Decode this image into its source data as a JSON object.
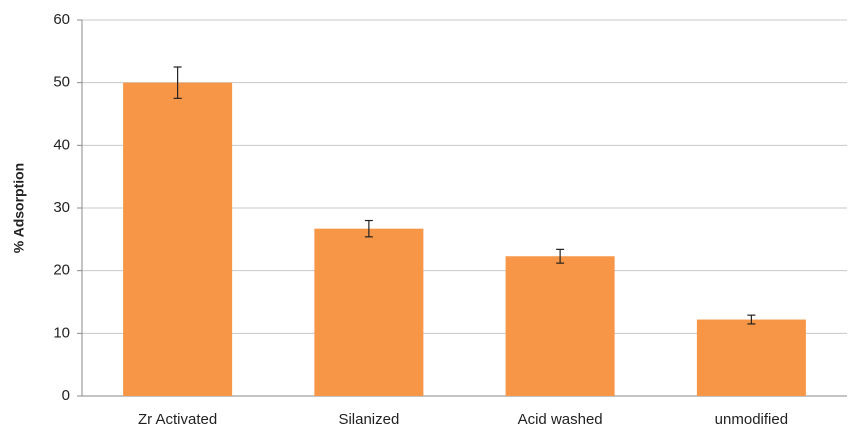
{
  "chart_data": {
    "type": "bar",
    "y_label": "% Adsorption",
    "categories": [
      "Zr Activated",
      "Silanized",
      "Acid washed",
      "unmodified"
    ],
    "values": [
      50,
      26.7,
      22.3,
      12.2
    ],
    "errors": [
      2.5,
      1.3,
      1.1,
      0.7
    ],
    "color": "#f79646",
    "ylim": [
      0,
      60
    ],
    "yticks": [
      0,
      10,
      20,
      30,
      40,
      50,
      60
    ],
    "grid": true
  }
}
